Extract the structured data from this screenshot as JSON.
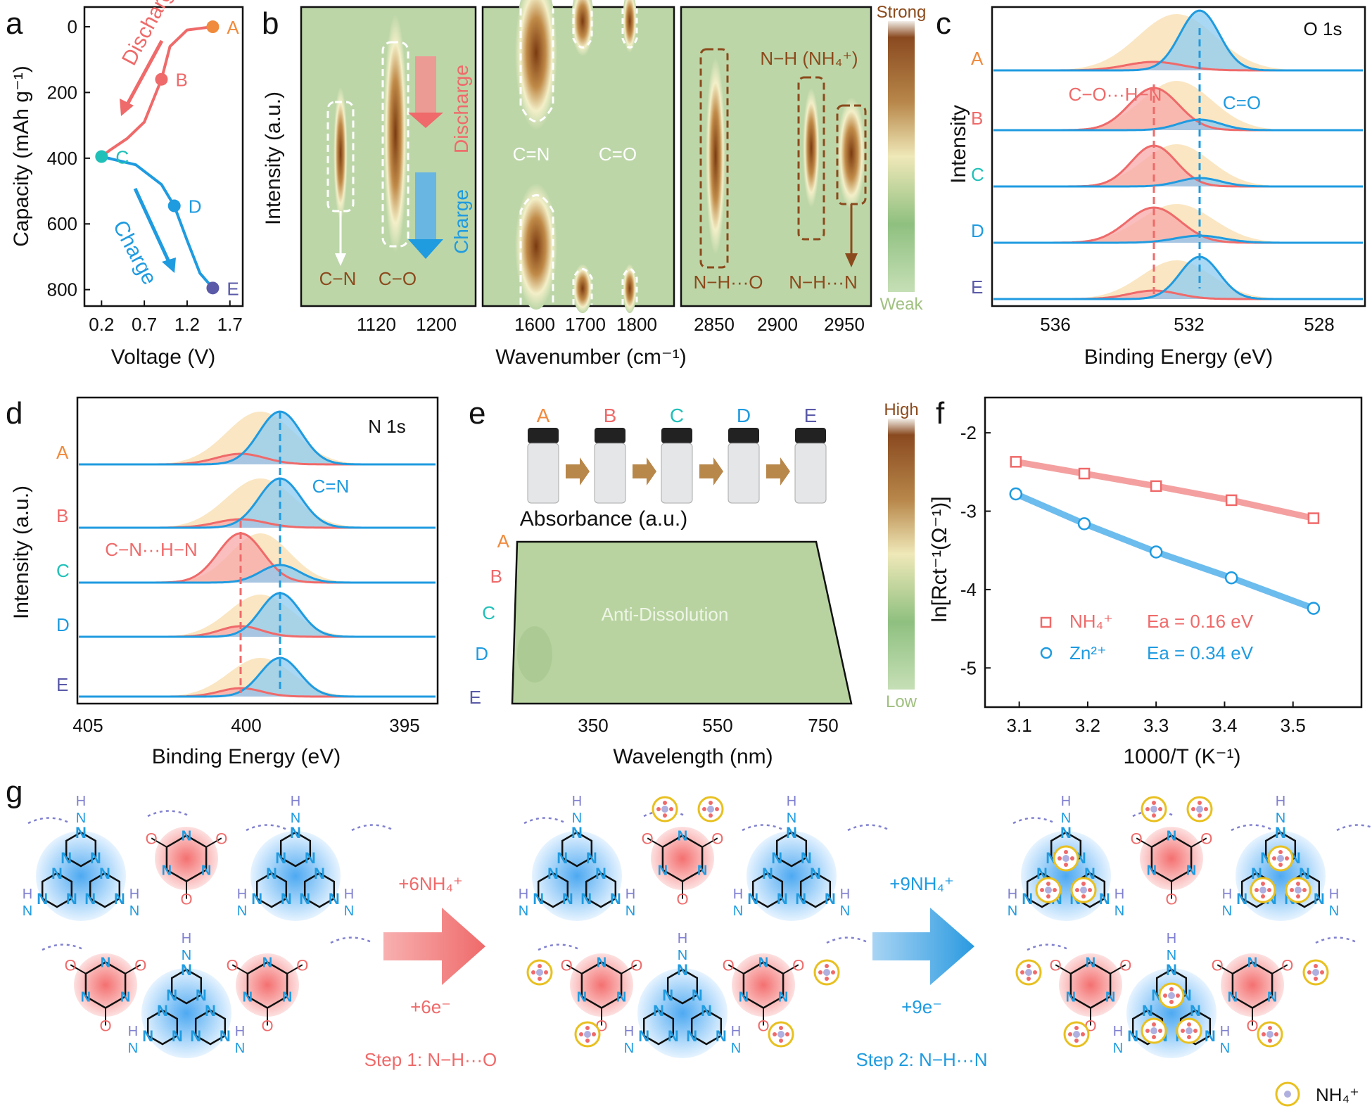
{
  "panel_letters": [
    "a",
    "b",
    "c",
    "d",
    "e",
    "f",
    "g"
  ],
  "colors": {
    "red": "#ef6a6a",
    "blue": "#1f9be0",
    "orange": "#f08a3c",
    "teal": "#20c0b8",
    "navy": "#5a5aa8",
    "brown": "#8b4a1c",
    "green": "#bcd6a8"
  },
  "panel_a": {
    "xlabel": "Voltage (V)",
    "ylabel": "Capacity (mAh g⁻¹)",
    "xticks": [
      "0.2",
      "0.7",
      "1.2",
      "1.7"
    ],
    "yticks": [
      "0",
      "200",
      "400",
      "600",
      "800"
    ],
    "discharge_label": "Discharge",
    "charge_label": "Charge",
    "points": [
      {
        "label": "A",
        "voltage": 1.5,
        "capacity": 0
      },
      {
        "label": "B",
        "voltage": 0.9,
        "capacity": 160
      },
      {
        "label": "C",
        "voltage": 0.2,
        "capacity": 395
      },
      {
        "label": "D",
        "voltage": 1.05,
        "capacity": 545
      },
      {
        "label": "E",
        "voltage": 1.5,
        "capacity": 795
      }
    ]
  },
  "panel_b": {
    "xlabel": "Wavenumber (cm⁻¹)",
    "ylabel": "Intensity (a.u.)",
    "sub1": {
      "xticks": [
        "1120",
        "1200"
      ],
      "labels": [
        "C−N",
        "C−O"
      ]
    },
    "sub2": {
      "xticks": [
        "1600",
        "1700",
        "1800"
      ],
      "labels": [
        "C=N",
        "C=O"
      ]
    },
    "sub3": {
      "xticks": [
        "2850",
        "2900",
        "2950"
      ],
      "labels": [
        "N−H···O",
        "N−H···N"
      ],
      "top_label": "N−H (NH₄⁺)"
    },
    "discharge": "Discharge",
    "charge": "Charge",
    "colorbar": {
      "high": "Strong",
      "low": "Weak"
    }
  },
  "panel_c": {
    "title": "O 1s",
    "xlabel": "Binding Energy (eV)",
    "ylabel": "Intensity",
    "xticks": [
      "536",
      "532",
      "528"
    ],
    "peak1": "C−O···H−N",
    "peak2": "C=O",
    "rows": [
      "A",
      "B",
      "C",
      "D",
      "E"
    ]
  },
  "panel_d": {
    "title": "N 1s",
    "xlabel": "Binding Energy (eV)",
    "ylabel": "Intensity (a.u.)",
    "xticks": [
      "405",
      "400",
      "395"
    ],
    "peak1": "C−N···H−N",
    "peak2": "C=N",
    "rows": [
      "A",
      "B",
      "C",
      "D",
      "E"
    ]
  },
  "panel_e": {
    "top_label": "Absorbance (a.u.)",
    "vials": [
      "A",
      "B",
      "C",
      "D",
      "E"
    ],
    "rows": [
      "A",
      "B",
      "C",
      "D",
      "E"
    ],
    "xlabel": "Wavelength (nm)",
    "xticks": [
      "350",
      "550",
      "750"
    ],
    "center_label": "Anti-Dissolution",
    "colorbar": {
      "high": "High",
      "low": "Low"
    }
  },
  "panel_f": {
    "xlabel": "1000/T (K⁻¹)",
    "ylabel": "ln[Rct⁻¹(Ω⁻¹)]",
    "xticks": [
      "3.1",
      "3.2",
      "3.3",
      "3.4",
      "3.5"
    ],
    "yticks": [
      "-2",
      "-3",
      "-4",
      "-5"
    ],
    "legend": [
      {
        "ion": "NH₄⁺",
        "ea": "Ea = 0.16 eV"
      },
      {
        "ion": "Zn²⁺",
        "ea": "Ea = 0.34 eV"
      }
    ]
  },
  "chart_data": [
    {
      "type": "line",
      "panel": "f",
      "xlim": [
        3.05,
        3.6
      ],
      "ylim": [
        -5.5,
        -1.55
      ],
      "series": [
        {
          "name": "NH₄⁺",
          "x": [
            3.095,
            3.195,
            3.3,
            3.41,
            3.53
          ],
          "y": [
            -2.37,
            -2.52,
            -2.68,
            -2.86,
            -3.09
          ]
        },
        {
          "name": "Zn²⁺",
          "x": [
            3.095,
            3.195,
            3.3,
            3.41,
            3.53
          ],
          "y": [
            -2.78,
            -3.16,
            -3.52,
            -3.85,
            -4.24
          ]
        }
      ]
    },
    {
      "type": "line",
      "panel": "a",
      "xlim": [
        0,
        1.85
      ],
      "ylim": [
        -60,
        850
      ],
      "series": [
        {
          "name": "Discharge",
          "x": [
            1.5,
            1.2,
            1.0,
            0.9,
            0.7,
            0.5,
            0.3,
            0.2
          ],
          "y": [
            0,
            10,
            60,
            160,
            290,
            340,
            375,
            395
          ]
        },
        {
          "name": "Charge",
          "x": [
            0.2,
            0.6,
            0.9,
            1.05,
            1.2,
            1.35,
            1.5
          ],
          "y": [
            395,
            420,
            480,
            545,
            650,
            750,
            795
          ]
        }
      ]
    }
  ],
  "panel_g": {
    "arrow1_top": "+6NH₄⁺",
    "arrow1_bottom": "+6e⁻",
    "arrow2_top": "+9NH₄⁺",
    "arrow2_bottom": "+9e⁻",
    "step1": "Step 1: N−H···O",
    "step2": "Step 2: N−H···N",
    "legend": "NH₄⁺"
  }
}
